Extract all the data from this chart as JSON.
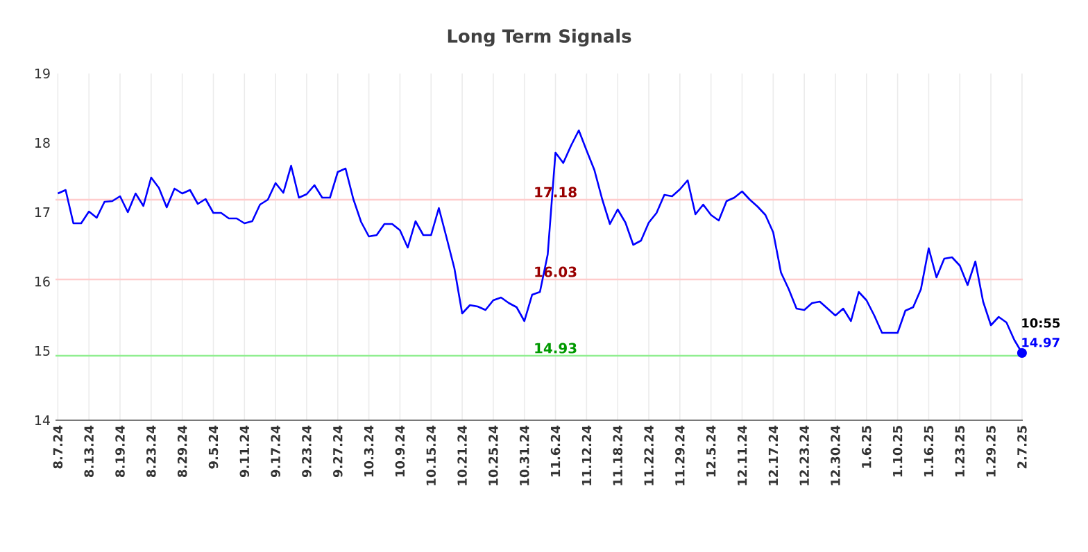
{
  "chart_data": {
    "type": "line",
    "title": "Long Term Signals",
    "categories": [
      "8.7.24",
      null,
      null,
      null,
      "8.13.24",
      null,
      null,
      null,
      "8.19.24",
      null,
      null,
      null,
      "8.23.24",
      null,
      null,
      null,
      "8.29.24",
      null,
      null,
      null,
      "9.5.24",
      null,
      null,
      null,
      "9.11.24",
      null,
      null,
      null,
      "9.17.24",
      null,
      null,
      null,
      "9.23.24",
      null,
      null,
      null,
      "9.27.24",
      null,
      null,
      null,
      "10.3.24",
      null,
      null,
      null,
      "10.9.24",
      null,
      null,
      null,
      "10.15.24",
      null,
      null,
      null,
      "10.21.24",
      null,
      null,
      null,
      "10.25.24",
      null,
      null,
      null,
      "10.31.24",
      null,
      null,
      null,
      "11.6.24",
      null,
      null,
      null,
      "11.12.24",
      null,
      null,
      null,
      "11.18.24",
      null,
      null,
      null,
      "11.22.24",
      null,
      null,
      null,
      "11.29.24",
      null,
      null,
      null,
      "12.5.24",
      null,
      null,
      null,
      "12.11.24",
      null,
      null,
      null,
      "12.17.24",
      null,
      null,
      null,
      "12.23.24",
      null,
      null,
      null,
      "12.30.24",
      null,
      null,
      null,
      "1.6.25",
      null,
      null,
      null,
      "1.10.25",
      null,
      null,
      null,
      "1.16.25",
      null,
      null,
      null,
      "1.23.25",
      null,
      null,
      null,
      "1.29.25",
      null,
      null,
      null,
      "2.7.25"
    ],
    "series": [
      {
        "color": "#0000ff",
        "values": [
          17.27,
          17.32,
          16.84,
          16.84,
          17.01,
          16.92,
          17.15,
          17.16,
          17.23,
          17.0,
          17.27,
          17.09,
          17.5,
          17.35,
          17.07,
          17.34,
          17.27,
          17.32,
          17.12,
          17.19,
          16.99,
          16.99,
          16.91,
          16.91,
          16.84,
          16.87,
          17.11,
          17.18,
          17.42,
          17.28,
          17.67,
          17.21,
          17.26,
          17.39,
          17.21,
          17.21,
          17.58,
          17.63,
          17.19,
          16.86,
          16.65,
          16.67,
          16.83,
          16.83,
          16.74,
          16.49,
          16.87,
          16.67,
          16.67,
          17.06,
          16.63,
          16.19,
          15.54,
          15.66,
          15.64,
          15.59,
          15.73,
          15.77,
          15.69,
          15.63,
          15.43,
          15.81,
          15.85,
          16.39,
          17.86,
          17.71,
          17.96,
          18.18,
          17.89,
          17.61,
          17.19,
          16.83,
          17.04,
          16.85,
          16.53,
          16.59,
          16.85,
          16.99,
          17.25,
          17.23,
          17.33,
          17.46,
          16.97,
          17.11,
          16.96,
          16.88,
          17.16,
          17.21,
          17.3,
          17.18,
          17.08,
          16.96,
          16.71,
          16.13,
          15.89,
          15.61,
          15.59,
          15.69,
          15.71,
          15.61,
          15.51,
          15.61,
          15.43,
          15.85,
          15.73,
          15.51,
          15.26,
          15.26,
          15.26,
          15.58,
          15.63,
          15.89,
          16.48,
          16.06,
          16.33,
          16.35,
          16.23,
          15.95,
          16.29,
          15.71,
          15.37,
          15.49,
          15.41,
          15.16,
          14.97
        ],
        "value_labels": [
          null,
          null,
          null,
          null,
          null,
          null,
          null,
          null,
          null,
          null,
          null,
          null,
          null,
          null,
          null,
          null,
          null,
          null,
          null,
          null,
          null,
          null,
          null,
          null,
          null,
          null,
          null,
          null,
          null,
          null,
          null,
          null,
          null,
          null,
          null,
          null,
          null,
          null,
          null,
          null,
          null,
          null,
          null,
          null,
          null,
          null,
          null,
          null,
          null,
          null,
          null,
          null,
          null,
          null,
          null,
          null,
          null,
          null,
          null,
          null,
          null,
          null,
          null,
          null,
          null,
          null,
          null,
          null,
          null,
          null,
          null,
          null,
          null,
          null,
          null,
          null,
          null,
          null,
          null,
          null,
          null,
          null,
          null,
          null,
          null,
          null,
          null,
          null,
          null,
          null,
          null,
          null,
          null,
          null,
          null,
          null,
          null,
          null,
          null,
          null,
          null,
          null,
          null,
          null,
          null,
          null,
          null,
          null,
          null,
          null,
          null,
          null,
          null,
          null,
          null,
          null,
          null,
          null,
          null,
          null,
          null,
          null,
          null,
          null,
          "14.97"
        ]
      }
    ],
    "ylim": [
      14,
      19
    ],
    "yticks": [
      14,
      15,
      16,
      17,
      18,
      19
    ],
    "grid": true,
    "ref_lines": [
      {
        "axis": "y",
        "value": 17.18,
        "label": "17.18",
        "color": "#ffcccc"
      },
      {
        "axis": "y",
        "value": 16.03,
        "label": "16.03",
        "color": "#ffcccc"
      },
      {
        "axis": "y",
        "value": 14.93,
        "label": "14.93",
        "color": "#90ee90"
      }
    ],
    "annotations": [
      {
        "text": "10:55",
        "x": "2.7.25",
        "y": 14.97
      }
    ]
  }
}
